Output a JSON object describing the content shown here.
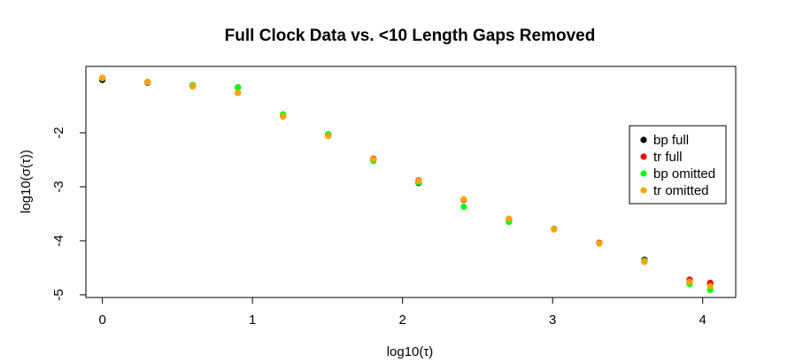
{
  "chart_data": {
    "type": "scatter",
    "title": "Full Clock Data vs. <10 Length Gaps Removed",
    "xlabel": "log10(τ)",
    "ylabel": "log10(σ(τ))",
    "xlim": [
      -0.11,
      4.22
    ],
    "ylim": [
      -5.05,
      -0.77
    ],
    "x_ticks": [
      0,
      1,
      2,
      3,
      4
    ],
    "x_tick_labels": [
      "0",
      "1",
      "2",
      "3",
      "4"
    ],
    "y_ticks": [
      -2,
      -3,
      -4,
      -5
    ],
    "y_tick_labels": [
      "-2",
      "-3",
      "-4",
      "-5"
    ],
    "grid": false,
    "legend_position": "right",
    "series": [
      {
        "name": "bp full",
        "color": "#000000",
        "points": [
          [
            0,
            -1.02
          ],
          [
            0.301,
            -1.07
          ],
          [
            0.602,
            -1.12
          ],
          [
            0.903,
            -1.16
          ],
          [
            1.204,
            -1.68
          ],
          [
            1.505,
            -2.03
          ],
          [
            1.806,
            -2.49
          ],
          [
            2.107,
            -2.93
          ],
          [
            2.408,
            -3.24
          ],
          [
            2.709,
            -3.6
          ],
          [
            3.01,
            -3.78
          ],
          [
            3.311,
            -4.04
          ],
          [
            3.612,
            -4.35
          ],
          [
            3.913,
            -4.74
          ],
          [
            4.05,
            -4.8
          ]
        ]
      },
      {
        "name": "tr full",
        "color": "#ff0000",
        "points": [
          [
            0,
            -0.99
          ],
          [
            0.301,
            -1.06
          ],
          [
            0.602,
            -1.14
          ],
          [
            0.903,
            -1.26
          ],
          [
            1.204,
            -1.68
          ],
          [
            1.505,
            -2.05
          ],
          [
            1.806,
            -2.48
          ],
          [
            2.107,
            -2.88
          ],
          [
            2.408,
            -3.24
          ],
          [
            2.709,
            -3.6
          ],
          [
            3.01,
            -3.78
          ],
          [
            3.311,
            -4.04
          ],
          [
            3.612,
            -4.36
          ],
          [
            3.913,
            -4.72
          ],
          [
            4.05,
            -4.78
          ]
        ]
      },
      {
        "name": "bp omitted",
        "color": "#00ff00",
        "points": [
          [
            0,
            -0.99
          ],
          [
            0.301,
            -1.06
          ],
          [
            0.602,
            -1.12
          ],
          [
            0.903,
            -1.16
          ],
          [
            1.204,
            -1.66
          ],
          [
            1.505,
            -2.03
          ],
          [
            1.806,
            -2.52
          ],
          [
            2.107,
            -2.92
          ],
          [
            2.408,
            -3.37
          ],
          [
            2.709,
            -3.65
          ],
          [
            3.01,
            -3.78
          ],
          [
            3.311,
            -4.05
          ],
          [
            3.612,
            -4.37
          ],
          [
            3.913,
            -4.8
          ],
          [
            4.05,
            -4.91
          ]
        ]
      },
      {
        "name": "tr omitted",
        "color": "#ffa500",
        "points": [
          [
            0,
            -0.98
          ],
          [
            0.301,
            -1.06
          ],
          [
            0.602,
            -1.14
          ],
          [
            0.903,
            -1.26
          ],
          [
            1.204,
            -1.7
          ],
          [
            1.505,
            -2.06
          ],
          [
            1.806,
            -2.49
          ],
          [
            2.107,
            -2.89
          ],
          [
            2.408,
            -3.23
          ],
          [
            2.709,
            -3.59
          ],
          [
            3.01,
            -3.79
          ],
          [
            3.311,
            -4.05
          ],
          [
            3.612,
            -4.39
          ],
          [
            3.913,
            -4.76
          ],
          [
            4.05,
            -4.84
          ]
        ]
      }
    ]
  }
}
